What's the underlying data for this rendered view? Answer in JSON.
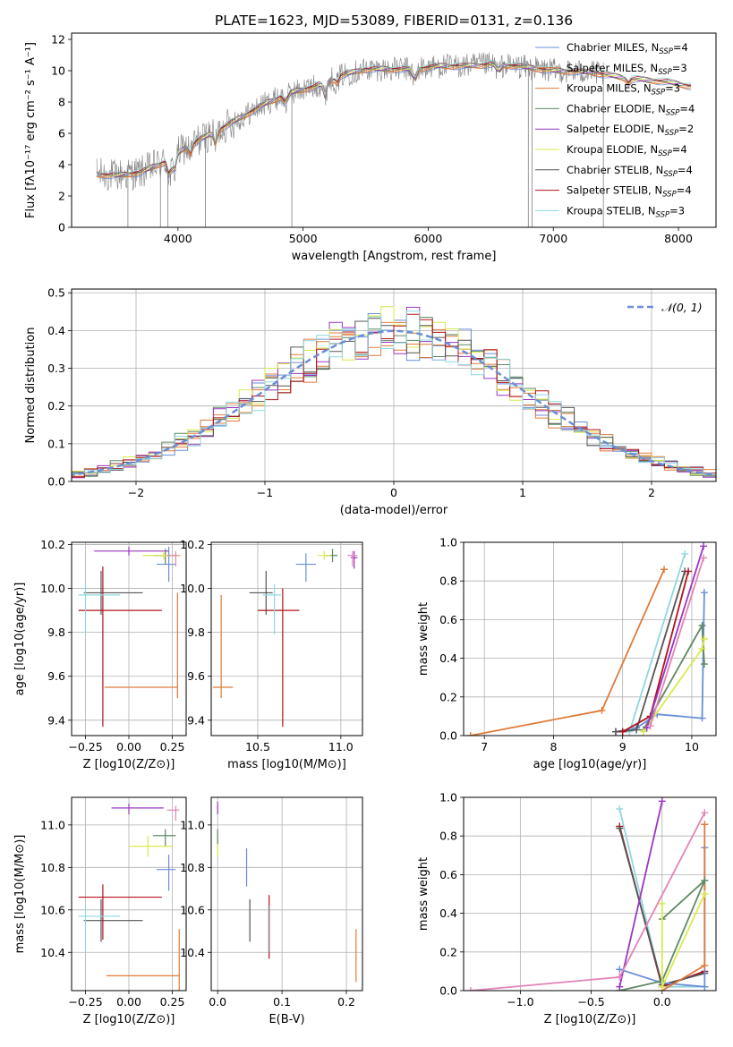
{
  "title": "PLATE=1623, MJD=53089, FIBERID=0131, z=0.136",
  "colors": {
    "chabrier_miles": "#6a8fd6",
    "salpeter_miles": "#e07b39",
    "kroupa_miles": "#e07b39",
    "chabrier_elodie": "#5f8a64",
    "salpeter_elodie": "#9b36c2",
    "kroupa_elodie": "#d9ea4f",
    "chabrier_stelib": "#555555",
    "salpeter_stelib": "#b1121a",
    "kroupa_stelib": "#8fd8e0",
    "pink": "#e284b8",
    "normal": "#6a8fd6",
    "data": "#808080"
  },
  "chart_data": [
    {
      "type": "line",
      "panel": "spectrum",
      "xlabel": "wavelength [Angstrom, rest frame]",
      "ylabel": "Flux [fλ10⁻¹⁷ erg cm⁻² s⁻¹ A⁻¹]",
      "xlim": [
        3150,
        8300
      ],
      "ylim": [
        0,
        12.4
      ],
      "xticks": [
        4000,
        5000,
        6000,
        7000,
        8000
      ],
      "yticks": [
        0,
        2,
        4,
        6,
        8,
        10,
        12
      ],
      "legend_position": "top-right",
      "legend": [
        "Chabrier MILES, N_SSP=4",
        "Salpeter MILES, N_SSP=3",
        "Kroupa MILES, N_SSP=3",
        "Chabrier ELODIE, N_SSP=4",
        "Salpeter ELODIE, N_SSP=2",
        "Kroupa ELODIE, N_SSP=4",
        "Chabrier STELIB, N_SSP=4",
        "Salpeter STELIB, N_SSP=4",
        "Kroupa STELIB, N_SSP=3"
      ],
      "continuum": [
        [
          3350,
          3.4
        ],
        [
          3500,
          3.3
        ],
        [
          3700,
          3.5
        ],
        [
          3900,
          4.2
        ],
        [
          4100,
          5.3
        ],
        [
          4300,
          6.1
        ],
        [
          4500,
          7.0
        ],
        [
          4700,
          7.9
        ],
        [
          4900,
          8.6
        ],
        [
          5100,
          9.0
        ],
        [
          5300,
          9.7
        ],
        [
          5500,
          10.1
        ],
        [
          5700,
          10.1
        ],
        [
          5900,
          10.1
        ],
        [
          6100,
          10.3
        ],
        [
          6300,
          10.3
        ],
        [
          6500,
          10.4
        ],
        [
          6700,
          10.3
        ],
        [
          7000,
          10.0
        ],
        [
          7300,
          9.9
        ],
        [
          7600,
          9.5
        ],
        [
          7900,
          9.3
        ],
        [
          8100,
          9.0
        ]
      ]
    },
    {
      "type": "histogram",
      "panel": "residuals",
      "xlabel": "(data-model)/error",
      "ylabel": "Normed distribution",
      "xlim": [
        -2.5,
        2.5
      ],
      "ylim": [
        0,
        0.51
      ],
      "xticks": [
        -2,
        -1,
        0,
        1,
        2
      ],
      "yticks": [
        0.0,
        0.1,
        0.2,
        0.3,
        0.4,
        0.5
      ],
      "legend": "N(0,1)",
      "legend_position": "top-right"
    },
    {
      "type": "scatter",
      "panel": "age_vs_Z",
      "xlabel": "Z [log10(Z/Z⊙)]",
      "ylabel": "age  [log10(age/yr)]",
      "xlim": [
        -0.33,
        0.33
      ],
      "ylim": [
        9.33,
        10.21
      ],
      "xticks": [
        -0.25,
        0.0,
        0.25
      ],
      "yticks": [
        9.4,
        9.6,
        9.8,
        10.0,
        10.2
      ]
    },
    {
      "type": "scatter",
      "panel": "age_vs_mass",
      "xlabel": "mass [log10(M/M⊙)]",
      "ylabel": "",
      "xlim": [
        10.22,
        11.13
      ],
      "ylim": [
        9.33,
        10.21
      ],
      "xticks": [
        10.5,
        11.0
      ],
      "yticks": [
        9.4,
        9.6,
        9.8,
        10.0,
        10.2
      ]
    },
    {
      "type": "line",
      "panel": "weight_vs_age",
      "xlabel": "age  [log10(age/yr)]",
      "ylabel": "mass weight",
      "xlim": [
        6.7,
        10.35
      ],
      "ylim": [
        0,
        1.0
      ],
      "xticks": [
        7,
        8,
        9,
        10
      ],
      "yticks": [
        0.0,
        0.2,
        0.4,
        0.6,
        0.8,
        1.0
      ]
    },
    {
      "type": "scatter",
      "panel": "mass_vs_Z",
      "xlabel": "Z [log10(Z/Z⊙)]",
      "ylabel": "mass [log10(M/M⊙)]",
      "xlim": [
        -0.33,
        0.33
      ],
      "ylim": [
        10.22,
        11.13
      ],
      "xticks": [
        -0.25,
        0.0,
        0.25
      ],
      "yticks": [
        10.4,
        10.6,
        10.8,
        11.0
      ]
    },
    {
      "type": "scatter",
      "panel": "mass_vs_ebv",
      "xlabel": "E(B-V)",
      "ylabel": "",
      "xlim": [
        -0.01,
        0.225
      ],
      "ylim": [
        10.22,
        11.13
      ],
      "xticks": [
        0.0,
        0.1,
        0.2
      ],
      "yticks": [
        10.4,
        10.6,
        10.8,
        11.0
      ]
    },
    {
      "type": "line",
      "panel": "weight_vs_Z",
      "xlabel": "Z [log10(Z/Z⊙)]",
      "ylabel": "mass weight",
      "xlim": [
        -1.4,
        0.38
      ],
      "ylim": [
        0,
        1.0
      ],
      "xticks": [
        -1.0,
        -0.5,
        0.0
      ],
      "yticks": [
        0.0,
        0.2,
        0.4,
        0.6,
        0.8,
        1.0
      ]
    }
  ]
}
